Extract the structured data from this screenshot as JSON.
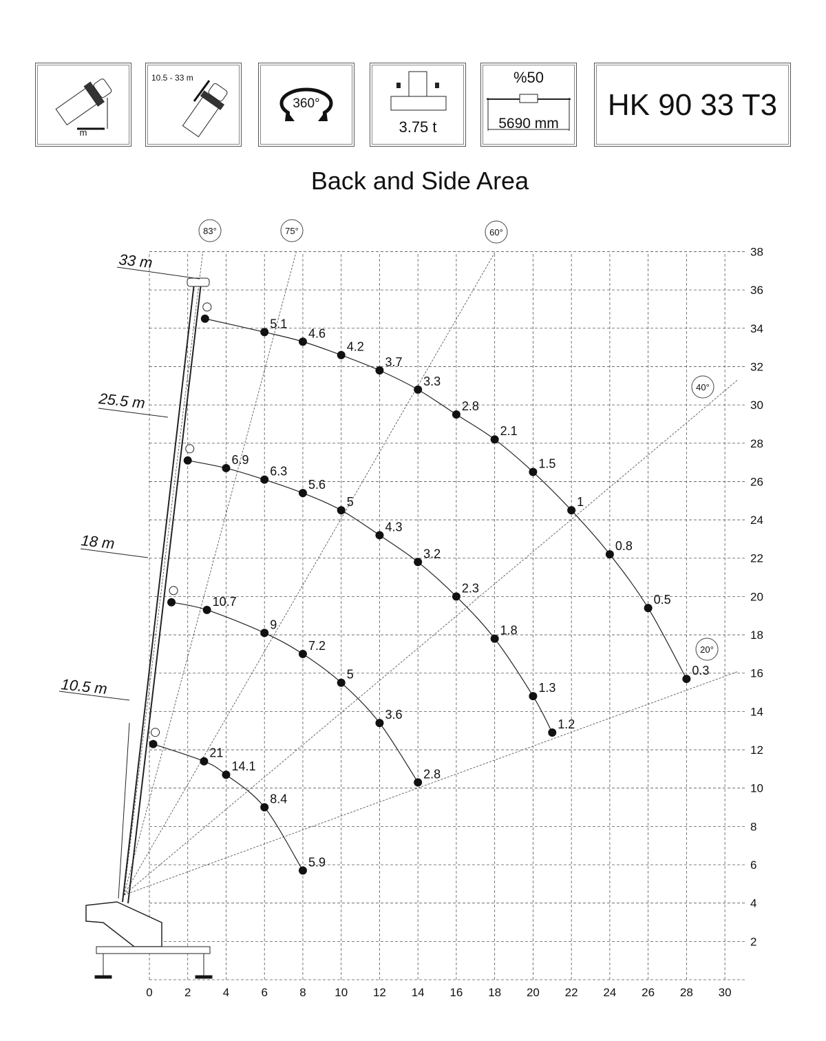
{
  "header": {
    "boxes": [
      {
        "icon": "boom-radius-icon",
        "label": "m"
      },
      {
        "icon": "boom-extension-icon",
        "label": "10.5 - 33 m"
      },
      {
        "icon": "rotation-360-icon",
        "label": "360°"
      },
      {
        "icon": "outrigger-weight-icon",
        "label": "3.75 t"
      },
      {
        "icon": "outrigger-span-icon",
        "label_top": "%50",
        "label": "5690 mm"
      }
    ],
    "model": "HK 90 33 T3"
  },
  "chart_data": {
    "type": "scatter",
    "title": "Back and Side Area",
    "xlabel": "",
    "ylabel": "",
    "xlim": [
      0,
      30
    ],
    "ylim": [
      0,
      38
    ],
    "x_ticks": [
      "0",
      "2",
      "4",
      "6",
      "8",
      "10",
      "12",
      "14",
      "16",
      "18",
      "20",
      "22",
      "24",
      "26",
      "28",
      "30"
    ],
    "y_ticks": [
      "2",
      "4",
      "6",
      "8",
      "10",
      "12",
      "14",
      "16",
      "18",
      "20",
      "22",
      "24",
      "26",
      "28",
      "30",
      "32",
      "34",
      "36",
      "38"
    ],
    "grid": true,
    "y_axis_side": "right",
    "angle_lines": [
      "83°",
      "75°",
      "60°",
      "40°",
      "20°"
    ],
    "angle_values": [
      83,
      75,
      60,
      40,
      20
    ],
    "series": [
      {
        "name": "33 m",
        "points": [
          {
            "x": 2.9,
            "y": 34.5,
            "label": ""
          },
          {
            "x": 6,
            "y": 33.8,
            "label": "5.1"
          },
          {
            "x": 8,
            "y": 33.3,
            "label": "4.6"
          },
          {
            "x": 10,
            "y": 32.6,
            "label": "4.2"
          },
          {
            "x": 12,
            "y": 31.8,
            "label": "3.7"
          },
          {
            "x": 14,
            "y": 30.8,
            "label": "3.3"
          },
          {
            "x": 16,
            "y": 29.5,
            "label": "2.8"
          },
          {
            "x": 18,
            "y": 28.2,
            "label": "2.1"
          },
          {
            "x": 20,
            "y": 26.5,
            "label": "1.5"
          },
          {
            "x": 22,
            "y": 24.5,
            "label": "1"
          },
          {
            "x": 24,
            "y": 22.2,
            "label": "0.8"
          },
          {
            "x": 26,
            "y": 19.4,
            "label": "0.5"
          },
          {
            "x": 28,
            "y": 15.7,
            "label": "0.3"
          }
        ]
      },
      {
        "name": "25.5 m",
        "points": [
          {
            "x": 2,
            "y": 27.1,
            "label": ""
          },
          {
            "x": 4,
            "y": 26.7,
            "label": "6.9"
          },
          {
            "x": 6,
            "y": 26.1,
            "label": "6.3"
          },
          {
            "x": 8,
            "y": 25.4,
            "label": "5.6"
          },
          {
            "x": 10,
            "y": 24.5,
            "label": "5"
          },
          {
            "x": 12,
            "y": 23.2,
            "label": "4.3"
          },
          {
            "x": 14,
            "y": 21.8,
            "label": "3.2"
          },
          {
            "x": 16,
            "y": 20.0,
            "label": "2.3"
          },
          {
            "x": 18,
            "y": 17.8,
            "label": "1.8"
          },
          {
            "x": 20,
            "y": 14.8,
            "label": "1.3"
          },
          {
            "x": 21,
            "y": 12.9,
            "label": "1.2"
          }
        ]
      },
      {
        "name": "18 m",
        "points": [
          {
            "x": 1.15,
            "y": 19.7,
            "label": ""
          },
          {
            "x": 3,
            "y": 19.3,
            "label": "10.7"
          },
          {
            "x": 6,
            "y": 18.1,
            "label": "9"
          },
          {
            "x": 8,
            "y": 17.0,
            "label": "7.2"
          },
          {
            "x": 10,
            "y": 15.5,
            "label": "5"
          },
          {
            "x": 12,
            "y": 13.4,
            "label": "3.6"
          },
          {
            "x": 14,
            "y": 10.3,
            "label": "2.8"
          }
        ]
      },
      {
        "name": "10.5 m",
        "points": [
          {
            "x": 0.2,
            "y": 12.3,
            "label": ""
          },
          {
            "x": 2.85,
            "y": 11.4,
            "label": "21"
          },
          {
            "x": 4,
            "y": 10.7,
            "label": "14.1"
          },
          {
            "x": 6,
            "y": 9.0,
            "label": "8.4"
          },
          {
            "x": 8,
            "y": 5.7,
            "label": "5.9"
          }
        ]
      }
    ]
  }
}
